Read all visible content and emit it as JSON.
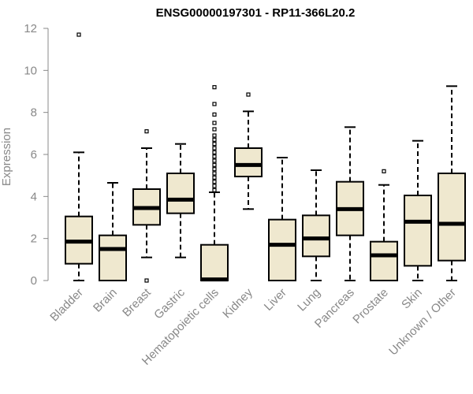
{
  "chart_data": {
    "type": "boxplot",
    "title": "ENSG00000197301 - RP11-366L20.2",
    "xlabel": "",
    "ylabel": "Expression",
    "ylim": [
      0,
      12
    ],
    "yticks": [
      0,
      2,
      4,
      6,
      8,
      10,
      12
    ],
    "box_fill": "#efe8cf",
    "box_stroke": "#000000",
    "axis_color": "#888888",
    "grid": false,
    "categories": [
      "Bladder",
      "Brain",
      "Breast",
      "Gastric",
      "Hematopoietic cells",
      "Kidney",
      "Liver",
      "Lung",
      "Pancreas",
      "Prostate",
      "Skin",
      "Unknown / Other"
    ],
    "boxes": [
      {
        "category": "Bladder",
        "whisker_low": 0,
        "q1": 0.8,
        "median": 1.85,
        "q3": 3.05,
        "whisker_high": 6.1,
        "outliers": [
          11.7
        ]
      },
      {
        "category": "Brain",
        "whisker_low": 0,
        "q1": 0,
        "median": 1.5,
        "q3": 2.15,
        "whisker_high": 4.65,
        "outliers": []
      },
      {
        "category": "Breast",
        "whisker_low": 1.1,
        "q1": 2.65,
        "median": 3.45,
        "q3": 4.35,
        "whisker_high": 6.3,
        "outliers": [
          7.1,
          0.0
        ]
      },
      {
        "category": "Gastric",
        "whisker_low": 1.1,
        "q1": 3.2,
        "median": 3.85,
        "q3": 5.1,
        "whisker_high": 6.5,
        "outliers": []
      },
      {
        "category": "Hematopoietic cells",
        "whisker_low": 0,
        "q1": 0,
        "median": 0.05,
        "q3": 1.7,
        "whisker_high": 4.2,
        "outliers": [
          4.3,
          4.5,
          4.7,
          4.9,
          5.1,
          5.3,
          5.5,
          5.7,
          5.9,
          6.1,
          6.3,
          6.5,
          6.7,
          6.9,
          7.2,
          7.5,
          7.9,
          8.4,
          9.2
        ]
      },
      {
        "category": "Kidney",
        "whisker_low": 3.4,
        "q1": 4.95,
        "median": 5.5,
        "q3": 6.3,
        "whisker_high": 8.05,
        "outliers": [
          8.85
        ]
      },
      {
        "category": "Liver",
        "whisker_low": 0,
        "q1": 0,
        "median": 1.7,
        "q3": 2.9,
        "whisker_high": 5.85,
        "outliers": []
      },
      {
        "category": "Lung",
        "whisker_low": 0,
        "q1": 1.15,
        "median": 2.0,
        "q3": 3.1,
        "whisker_high": 5.25,
        "outliers": []
      },
      {
        "category": "Pancreas",
        "whisker_low": 0,
        "q1": 2.15,
        "median": 3.4,
        "q3": 4.7,
        "whisker_high": 7.3,
        "outliers": []
      },
      {
        "category": "Prostate",
        "whisker_low": 0,
        "q1": 0,
        "median": 1.2,
        "q3": 1.85,
        "whisker_high": 4.55,
        "outliers": [
          5.2
        ]
      },
      {
        "category": "Skin",
        "whisker_low": 0,
        "q1": 0.7,
        "median": 2.8,
        "q3": 4.05,
        "whisker_high": 6.65,
        "outliers": []
      },
      {
        "category": "Unknown / Other",
        "whisker_low": 0,
        "q1": 0.95,
        "median": 2.7,
        "q3": 5.1,
        "whisker_high": 9.25,
        "outliers": []
      }
    ]
  }
}
